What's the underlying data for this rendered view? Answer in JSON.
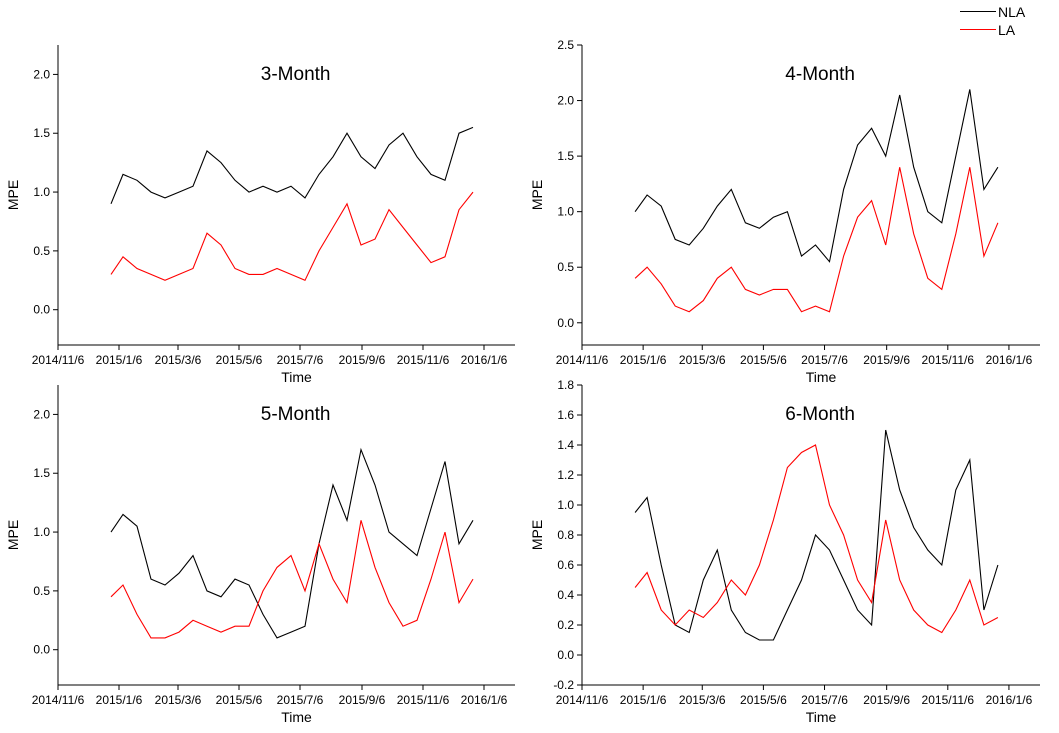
{
  "legend": {
    "items": [
      {
        "label": "NLA",
        "color": "#000000"
      },
      {
        "label": "LA",
        "color": "#ff0000"
      }
    ],
    "placement": "top-right"
  },
  "chart_data": [
    {
      "type": "line",
      "title": "3-Month",
      "xlabel": "Time",
      "ylabel": "MPE",
      "xlim": [
        "2014-11-06",
        "2016-02-06"
      ],
      "ylim": [
        -0.3,
        2.25
      ],
      "xticks": [
        "2014/11/6",
        "2015/1/6",
        "2015/3/6",
        "2015/5/6",
        "2015/7/6",
        "2015/9/6",
        "2015/11/6",
        "2016/1/6"
      ],
      "yticks": [
        "0.0",
        "0.5",
        "1.0",
        "1.5",
        "2.0"
      ],
      "ytick_values": [
        0.0,
        0.5,
        1.0,
        1.5,
        2.0
      ],
      "grid": false,
      "x": [
        "2014-12-29",
        "2015-01-10",
        "2015-01-24",
        "2015-02-07",
        "2015-02-21",
        "2015-03-07",
        "2015-03-21",
        "2015-04-04",
        "2015-04-18",
        "2015-05-02",
        "2015-05-16",
        "2015-05-30",
        "2015-06-13",
        "2015-06-27",
        "2015-07-11",
        "2015-07-25",
        "2015-08-08",
        "2015-08-22",
        "2015-09-05",
        "2015-09-19",
        "2015-10-03",
        "2015-10-17",
        "2015-10-31",
        "2015-11-14",
        "2015-11-28",
        "2015-12-12",
        "2015-12-26"
      ],
      "series": [
        {
          "name": "NLA",
          "color": "#000000",
          "values": [
            0.9,
            1.15,
            1.1,
            1.0,
            0.95,
            1.0,
            1.05,
            1.35,
            1.25,
            1.1,
            1.0,
            1.05,
            1.0,
            1.05,
            0.95,
            1.15,
            1.3,
            1.5,
            1.3,
            1.2,
            1.4,
            1.5,
            1.3,
            1.15,
            1.1,
            1.5,
            1.55
          ]
        },
        {
          "name": "LA",
          "color": "#ff0000",
          "values": [
            0.3,
            0.45,
            0.35,
            0.3,
            0.25,
            0.3,
            0.35,
            0.65,
            0.55,
            0.35,
            0.3,
            0.3,
            0.35,
            0.3,
            0.25,
            0.5,
            0.7,
            0.9,
            0.55,
            0.6,
            0.85,
            0.7,
            0.55,
            0.4,
            0.45,
            0.85,
            1.0
          ]
        }
      ]
    },
    {
      "type": "line",
      "title": "4-Month",
      "xlabel": "Time",
      "ylabel": "MPE",
      "xlim": [
        "2014-11-06",
        "2016-02-06"
      ],
      "ylim": [
        -0.2,
        2.5
      ],
      "xticks": [
        "2014/11/6",
        "2015/1/6",
        "2015/3/6",
        "2015/5/6",
        "2015/7/6",
        "2015/9/6",
        "2015/11/6",
        "2016/1/6"
      ],
      "yticks": [
        "0.0",
        "0.5",
        "1.0",
        "1.5",
        "2.0",
        "2.5"
      ],
      "ytick_values": [
        0.0,
        0.5,
        1.0,
        1.5,
        2.0,
        2.5
      ],
      "grid": false,
      "x": [
        "2014-12-29",
        "2015-01-10",
        "2015-01-24",
        "2015-02-07",
        "2015-02-21",
        "2015-03-07",
        "2015-03-21",
        "2015-04-04",
        "2015-04-18",
        "2015-05-02",
        "2015-05-16",
        "2015-05-30",
        "2015-06-13",
        "2015-06-27",
        "2015-07-11",
        "2015-07-25",
        "2015-08-08",
        "2015-08-22",
        "2015-09-05",
        "2015-09-19",
        "2015-10-03",
        "2015-10-17",
        "2015-10-31",
        "2015-11-14",
        "2015-11-28",
        "2015-12-12",
        "2015-12-26"
      ],
      "series": [
        {
          "name": "NLA",
          "color": "#000000",
          "values": [
            1.0,
            1.15,
            1.05,
            0.75,
            0.7,
            0.85,
            1.05,
            1.2,
            0.9,
            0.85,
            0.95,
            1.0,
            0.6,
            0.7,
            0.55,
            1.2,
            1.6,
            1.75,
            1.5,
            2.05,
            1.4,
            1.0,
            0.9,
            1.5,
            2.1,
            1.2,
            1.4
          ]
        },
        {
          "name": "LA",
          "color": "#ff0000",
          "values": [
            0.4,
            0.5,
            0.35,
            0.15,
            0.1,
            0.2,
            0.4,
            0.5,
            0.3,
            0.25,
            0.3,
            0.3,
            0.1,
            0.15,
            0.1,
            0.6,
            0.95,
            1.1,
            0.7,
            1.4,
            0.8,
            0.4,
            0.3,
            0.8,
            1.4,
            0.6,
            0.9
          ]
        }
      ]
    },
    {
      "type": "line",
      "title": "5-Month",
      "xlabel": "Time",
      "ylabel": "MPE",
      "xlim": [
        "2014-11-06",
        "2016-02-06"
      ],
      "ylim": [
        -0.3,
        2.25
      ],
      "xticks": [
        "2014/11/6",
        "2015/1/6",
        "2015/3/6",
        "2015/5/6",
        "2015/7/6",
        "2015/9/6",
        "2015/11/6",
        "2016/1/6"
      ],
      "yticks": [
        "0.0",
        "0.5",
        "1.0",
        "1.5",
        "2.0"
      ],
      "ytick_values": [
        0.0,
        0.5,
        1.0,
        1.5,
        2.0
      ],
      "grid": false,
      "x": [
        "2014-12-29",
        "2015-01-10",
        "2015-01-24",
        "2015-02-07",
        "2015-02-21",
        "2015-03-07",
        "2015-03-21",
        "2015-04-04",
        "2015-04-18",
        "2015-05-02",
        "2015-05-16",
        "2015-05-30",
        "2015-06-13",
        "2015-06-27",
        "2015-07-11",
        "2015-07-25",
        "2015-08-08",
        "2015-08-22",
        "2015-09-05",
        "2015-09-19",
        "2015-10-03",
        "2015-10-17",
        "2015-10-31",
        "2015-11-14",
        "2015-11-28",
        "2015-12-12",
        "2015-12-26"
      ],
      "series": [
        {
          "name": "NLA",
          "color": "#000000",
          "values": [
            1.0,
            1.15,
            1.05,
            0.6,
            0.55,
            0.65,
            0.8,
            0.5,
            0.45,
            0.6,
            0.55,
            0.3,
            0.1,
            0.15,
            0.2,
            0.9,
            1.4,
            1.1,
            1.7,
            1.4,
            1.0,
            0.9,
            0.8,
            1.2,
            1.6,
            0.9,
            1.1
          ]
        },
        {
          "name": "LA",
          "color": "#ff0000",
          "values": [
            0.45,
            0.55,
            0.3,
            0.1,
            0.1,
            0.15,
            0.25,
            0.2,
            0.15,
            0.2,
            0.2,
            0.5,
            0.7,
            0.8,
            0.5,
            0.9,
            0.6,
            0.4,
            1.1,
            0.7,
            0.4,
            0.2,
            0.25,
            0.6,
            1.0,
            0.4,
            0.6
          ]
        }
      ]
    },
    {
      "type": "line",
      "title": "6-Month",
      "xlabel": "Time",
      "ylabel": "MPE",
      "xlim": [
        "2014-11-06",
        "2016-02-06"
      ],
      "ylim": [
        -0.2,
        1.8
      ],
      "xticks": [
        "2014/11/6",
        "2015/1/6",
        "2015/3/6",
        "2015/5/6",
        "2015/7/6",
        "2015/9/6",
        "2015/11/6",
        "2016/1/6"
      ],
      "yticks": [
        "-0.2",
        "0.0",
        "0.2",
        "0.4",
        "0.6",
        "0.8",
        "1.0",
        "1.2",
        "1.4",
        "1.6",
        "1.8"
      ],
      "ytick_values": [
        -0.2,
        0.0,
        0.2,
        0.4,
        0.6,
        0.8,
        1.0,
        1.2,
        1.4,
        1.6,
        1.8
      ],
      "grid": false,
      "x": [
        "2014-12-29",
        "2015-01-10",
        "2015-01-24",
        "2015-02-07",
        "2015-02-21",
        "2015-03-07",
        "2015-03-21",
        "2015-04-04",
        "2015-04-18",
        "2015-05-02",
        "2015-05-16",
        "2015-05-30",
        "2015-06-13",
        "2015-06-27",
        "2015-07-11",
        "2015-07-25",
        "2015-08-08",
        "2015-08-22",
        "2015-09-05",
        "2015-09-19",
        "2015-10-03",
        "2015-10-17",
        "2015-10-31",
        "2015-11-14",
        "2015-11-28",
        "2015-12-12",
        "2015-12-26"
      ],
      "series": [
        {
          "name": "NLA",
          "color": "#000000",
          "values": [
            0.95,
            1.05,
            0.6,
            0.2,
            0.15,
            0.5,
            0.7,
            0.3,
            0.15,
            0.1,
            0.1,
            0.3,
            0.5,
            0.8,
            0.7,
            0.5,
            0.3,
            0.2,
            1.5,
            1.1,
            0.85,
            0.7,
            0.6,
            1.1,
            1.3,
            0.3,
            0.6
          ]
        },
        {
          "name": "LA",
          "color": "#ff0000",
          "values": [
            0.45,
            0.55,
            0.3,
            0.2,
            0.3,
            0.25,
            0.35,
            0.5,
            0.4,
            0.6,
            0.9,
            1.25,
            1.35,
            1.4,
            1.0,
            0.8,
            0.5,
            0.35,
            0.9,
            0.5,
            0.3,
            0.2,
            0.15,
            0.3,
            0.5,
            0.2,
            0.25
          ]
        }
      ]
    }
  ]
}
